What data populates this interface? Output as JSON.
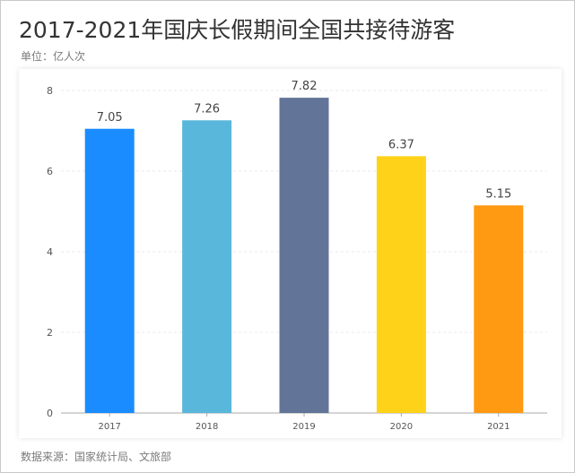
{
  "title": "2017-2021年国庆长假期间全国共接待游客",
  "unit": "单位：亿人次",
  "source": "数据来源：国家统计局、文旅部",
  "chart_data": {
    "type": "bar",
    "title": "2017-2021年国庆长假期间全国共接待游客",
    "ylabel": "单位：亿人次",
    "categories": [
      "2017",
      "2018",
      "2019",
      "2020",
      "2021"
    ],
    "values": [
      7.05,
      7.26,
      7.82,
      6.37,
      5.15
    ],
    "data_labels": [
      "7.05",
      "7.26",
      "7.82",
      "6.37",
      "5.15"
    ],
    "colors": [
      "#1a8cff",
      "#5ab7dc",
      "#627498",
      "#ffd21a",
      "#ff9a12"
    ],
    "ylim": [
      0,
      8
    ],
    "yticks": [
      0,
      2,
      4,
      6,
      8
    ],
    "grid": true,
    "legend": "none"
  }
}
